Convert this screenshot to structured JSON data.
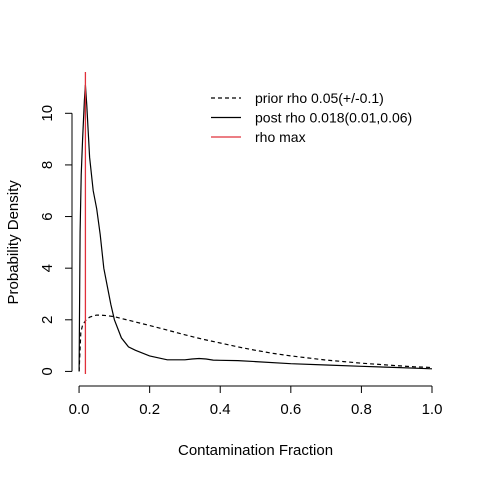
{
  "chart_data": {
    "type": "line",
    "title": "",
    "xlabel": "Contamination Fraction",
    "ylabel": "Probability Density",
    "xlim": [
      -0.02,
      1.0
    ],
    "ylim": [
      -0.1,
      11.6
    ],
    "xticks": [
      0.0,
      0.2,
      0.4,
      0.6,
      0.8,
      1.0
    ],
    "xtick_labels": [
      "0.0",
      "0.2",
      "0.4",
      "0.6",
      "0.8",
      "1.0"
    ],
    "yticks": [
      0,
      2,
      4,
      6,
      8,
      10
    ],
    "ytick_labels": [
      "0",
      "2",
      "4",
      "6",
      "8",
      "10"
    ],
    "grid": false,
    "legend_position": "top-right",
    "series": [
      {
        "name": "prior rho 0.05(+/-0.1)",
        "line_style": "dashed",
        "color": "#000000",
        "x": [
          0.0,
          0.005,
          0.01,
          0.02,
          0.03,
          0.04,
          0.05,
          0.06,
          0.08,
          0.1,
          0.12,
          0.15,
          0.2,
          0.25,
          0.3,
          0.35,
          0.4,
          0.45,
          0.5,
          0.55,
          0.6,
          0.65,
          0.7,
          0.75,
          0.8,
          0.85,
          0.9,
          0.95,
          1.0
        ],
        "y": [
          0.0,
          1.5,
          1.8,
          2.0,
          2.1,
          2.15,
          2.18,
          2.18,
          2.16,
          2.12,
          2.05,
          1.95,
          1.78,
          1.6,
          1.42,
          1.25,
          1.1,
          0.95,
          0.82,
          0.7,
          0.6,
          0.52,
          0.44,
          0.38,
          0.32,
          0.27,
          0.22,
          0.18,
          0.15
        ]
      },
      {
        "name": "post rho 0.018(0.01,0.06)",
        "line_style": "solid",
        "color": "#000000",
        "x": [
          0.0,
          0.003,
          0.006,
          0.01,
          0.015,
          0.018,
          0.022,
          0.03,
          0.04,
          0.05,
          0.06,
          0.07,
          0.08,
          0.09,
          0.1,
          0.12,
          0.14,
          0.16,
          0.2,
          0.25,
          0.3,
          0.32,
          0.34,
          0.36,
          0.38,
          0.4,
          0.45,
          0.5,
          0.6,
          0.7,
          0.8,
          0.9,
          1.0
        ],
        "y": [
          0.0,
          5.4,
          7.6,
          9.0,
          10.5,
          11.1,
          10.3,
          8.3,
          7.0,
          6.3,
          5.3,
          4.0,
          3.3,
          2.6,
          2.0,
          1.3,
          0.95,
          0.82,
          0.6,
          0.45,
          0.45,
          0.48,
          0.5,
          0.48,
          0.44,
          0.43,
          0.42,
          0.38,
          0.3,
          0.25,
          0.2,
          0.15,
          0.1
        ]
      }
    ],
    "vlines": [
      {
        "name": "rho max",
        "x": 0.018,
        "color": "#e0303a"
      }
    ]
  }
}
